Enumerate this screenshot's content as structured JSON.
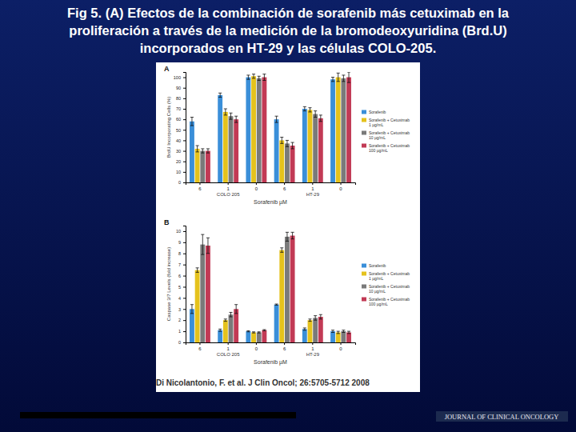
{
  "slide": {
    "title": [
      "Fig 5. (A) Efectos de la combinación de  sorafenib más cetuximab en la",
      "proliferación a través de la medición de la bromodeoxyuridina (Brd.U)",
      "incorporados en  HT-29 y las células  COLO-205."
    ],
    "citation": "Di Nicolantonio, F. et al. J Clin Oncol; 26:5705-5712 2008",
    "journal": "JOURNAL OF CLINICAL ONCOLOGY"
  },
  "chart_data": [
    {
      "type": "bar",
      "title": "A",
      "ylabel": "BrdU Incorporating Cells (%)",
      "xlabel": "Sorafenib µM",
      "categories": [
        "6",
        "1",
        "0",
        "6",
        "1",
        "0"
      ],
      "group_labels": [
        "COLO 205",
        "HT-29"
      ],
      "ylim": [
        0,
        105
      ],
      "yticks": [
        0,
        10,
        20,
        30,
        40,
        50,
        60,
        70,
        80,
        90,
        100
      ],
      "legend": "right",
      "series": [
        {
          "name": "Sorafenib",
          "color": "#3a8fd9",
          "values": [
            58,
            83,
            100,
            60,
            70,
            98
          ],
          "errors": [
            4,
            2,
            2,
            3,
            2,
            2
          ]
        },
        {
          "name": "Sorafenib + Cetuximab 1 µg/mL",
          "color": "#e5c21c",
          "values": [
            32,
            67,
            101,
            40,
            69,
            100
          ],
          "errors": [
            3,
            3,
            2,
            3,
            2,
            4
          ]
        },
        {
          "name": "Sorafenib + Cetuximab 10 µg/mL",
          "color": "#7a7a7a",
          "values": [
            30,
            63,
            99,
            37,
            65,
            99
          ],
          "errors": [
            2,
            3,
            2,
            3,
            3,
            3
          ]
        },
        {
          "name": "Sorafenib + Cetuximab 100 µg/mL",
          "color": "#c23a55",
          "values": [
            30,
            60,
            100,
            35,
            61,
            100
          ],
          "errors": [
            2,
            3,
            3,
            3,
            3,
            5
          ]
        }
      ]
    },
    {
      "type": "bar",
      "title": "B",
      "ylabel": "Caspase 3/7 Levels (fold increase)",
      "xlabel": "Sorafenib µM",
      "categories": [
        "6",
        "1",
        "0",
        "6",
        "1",
        "0"
      ],
      "group_labels": [
        "COLO 205",
        "HT-29"
      ],
      "ylim": [
        0,
        10.5
      ],
      "yticks": [
        0,
        1,
        2,
        3,
        4,
        5,
        6,
        7,
        8,
        9,
        10
      ],
      "legend": "right",
      "series": [
        {
          "name": "Sorafenib",
          "color": "#3a8fd9",
          "values": [
            3.0,
            1.1,
            1.0,
            3.4,
            1.2,
            1.0
          ],
          "errors": [
            0.4,
            0.1,
            0.05,
            0.05,
            0.1,
            0.1
          ]
        },
        {
          "name": "Sorafenib + Cetuximab 1 µg/mL",
          "color": "#e5c21c",
          "values": [
            6.5,
            2.0,
            0.9,
            8.3,
            2.0,
            0.9
          ],
          "errors": [
            0.2,
            0.1,
            0.05,
            0.2,
            0.1,
            0.1
          ]
        },
        {
          "name": "Sorafenib + Cetuximab 10 µg/mL",
          "color": "#7a7a7a",
          "values": [
            8.8,
            2.5,
            0.9,
            9.5,
            2.2,
            1.0
          ],
          "errors": [
            0.9,
            0.2,
            0.05,
            0.4,
            0.2,
            0.1
          ]
        },
        {
          "name": "Sorafenib + Cetuximab 100 µg/mL",
          "color": "#c23a55",
          "values": [
            8.7,
            3.0,
            1.1,
            9.6,
            2.3,
            0.9
          ],
          "errors": [
            0.7,
            0.4,
            0.05,
            0.3,
            0.2,
            0.1
          ]
        }
      ]
    }
  ]
}
